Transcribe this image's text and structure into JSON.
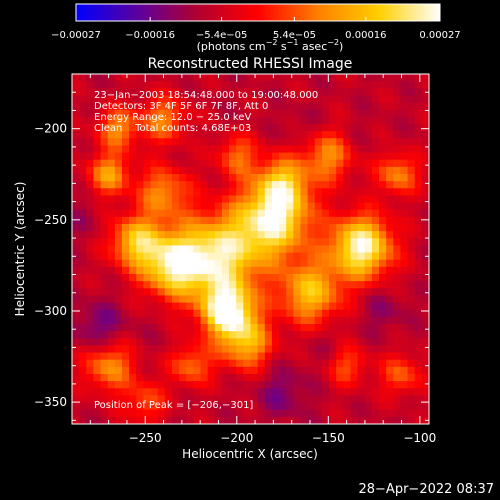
{
  "chart_data": {
    "type": "heatmap",
    "title": "Reconstructed RHESSI Image",
    "xlabel": "Heliocentric X (arcsec)",
    "ylabel": "Heliocentric Y (arcsec)",
    "xlim": [
      -290,
      -95
    ],
    "ylim": [
      -362,
      -170
    ],
    "x_ticks": [
      -250,
      -200,
      -150,
      -100
    ],
    "x_tick_labels": [
      "−250",
      "−200",
      "−150",
      "−100"
    ],
    "y_ticks": [
      -200,
      -250,
      -300,
      -350
    ],
    "y_tick_labels": [
      "−200",
      "−250",
      "−300",
      "−350"
    ],
    "colorbar": {
      "range": [
        -0.00027,
        0.00027
      ],
      "colors": [
        "#0000ff",
        "#5a00a0",
        "#b00030",
        "#ff0000",
        "#ff8000",
        "#ffd000",
        "#ffffff"
      ],
      "ticks": [
        -0.00027,
        -0.00016,
        -5.4e-05,
        5.4e-05,
        0.00016,
        0.00027
      ],
      "tick_labels": [
        "−0.00027",
        "−0.00016",
        "−5.4e−05",
        "5.4e−05",
        "0.00016",
        "0.00027"
      ],
      "unit_text": "(photons cm",
      "unit_sup1": "−2",
      "unit_mid": " s",
      "unit_sup2": "−1",
      "unit_mid2": " asec",
      "unit_sup3": "−2",
      "unit_end": ")"
    },
    "blobs": [
      {
        "x": -205,
        "y": -300,
        "v": 0.00027,
        "r": 10
      },
      {
        "x": -132,
        "y": -265,
        "v": 0.00026,
        "r": 12
      },
      {
        "x": -180,
        "y": -250,
        "v": 0.00024,
        "r": 14
      },
      {
        "x": -210,
        "y": -270,
        "v": 0.00022,
        "r": 16
      },
      {
        "x": -235,
        "y": -275,
        "v": 0.0002,
        "r": 12
      },
      {
        "x": -255,
        "y": -262,
        "v": 0.00016,
        "r": 10
      },
      {
        "x": -160,
        "y": -290,
        "v": 0.00016,
        "r": 12
      },
      {
        "x": -195,
        "y": -318,
        "v": 0.00014,
        "r": 10
      },
      {
        "x": -175,
        "y": -230,
        "v": 0.00013,
        "r": 10
      },
      {
        "x": -240,
        "y": -235,
        "v": 0.0001,
        "r": 10
      },
      {
        "x": -150,
        "y": -215,
        "v": 0.0001,
        "r": 10
      },
      {
        "x": -270,
        "y": -225,
        "v": 0.00012,
        "r": 8
      },
      {
        "x": -270,
        "y": -330,
        "v": 0.00011,
        "r": 10
      },
      {
        "x": -112,
        "y": -225,
        "v": 0.0001,
        "r": 8
      },
      {
        "x": -240,
        "y": -195,
        "v": 9e-05,
        "r": 9
      },
      {
        "x": -265,
        "y": -200,
        "v": 0.0001,
        "r": 8
      },
      {
        "x": -200,
        "y": -215,
        "v": 7e-05,
        "r": 8
      },
      {
        "x": -110,
        "y": -335,
        "v": 6e-05,
        "r": 8
      },
      {
        "x": -225,
        "y": -330,
        "v": 8e-05,
        "r": 8
      },
      {
        "x": -140,
        "y": -330,
        "v": 5e-05,
        "r": 8
      },
      {
        "x": -250,
        "y": -350,
        "v": 5e-05,
        "r": 8
      },
      {
        "x": -275,
        "y": -310,
        "v": -0.00016,
        "r": 10
      },
      {
        "x": -175,
        "y": -345,
        "v": -0.00014,
        "r": 10
      },
      {
        "x": -120,
        "y": -300,
        "v": -0.00012,
        "r": 9
      },
      {
        "x": -165,
        "y": -200,
        "v": -0.0001,
        "r": 8
      },
      {
        "x": -135,
        "y": -205,
        "v": -9e-05,
        "r": 8
      },
      {
        "x": -285,
        "y": -250,
        "v": -0.0001,
        "r": 8
      },
      {
        "x": -245,
        "y": -315,
        "v": -8e-05,
        "r": 8
      },
      {
        "x": -150,
        "y": -320,
        "v": -0.0001,
        "r": 8
      }
    ],
    "annotation_lines": [
      "23−Jan−2003 18:54:48.000 to 19:00:48.000",
      "Detectors: 3F 4F 5F 6F 7F 8F, Att 0",
      "Energy Range: 12.0 − 25.0 keV",
      "Clean    Total counts: 4.68E+03"
    ],
    "peak_text": "Position of Peak = [−206,−301]",
    "peak": {
      "x": -206,
      "y": -301
    }
  },
  "footer_date": "28−Apr−2022 08:37"
}
